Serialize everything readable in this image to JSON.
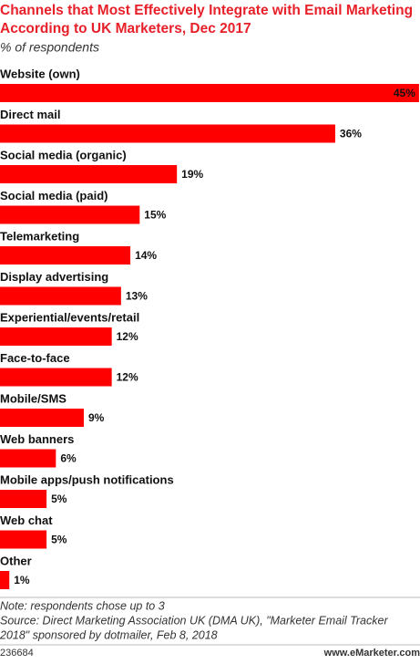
{
  "chart_data": {
    "type": "bar",
    "title": "Channels that Most Effectively Integrate with Email Marketing According to UK Marketers, Dec 2017",
    "subtitle": "% of respondents",
    "categories": [
      "Website (own)",
      "Direct mail",
      "Social media (organic)",
      "Social media (paid)",
      "Telemarketing",
      "Display advertising",
      "Experiential/events/retail",
      "Face-to-face",
      "Mobile/SMS",
      "Web banners",
      "Mobile apps/push notifications",
      "Web chat",
      "Other"
    ],
    "values": [
      45,
      36,
      19,
      15,
      14,
      13,
      12,
      12,
      9,
      6,
      5,
      5,
      1
    ],
    "value_labels": [
      "45%",
      "36%",
      "19%",
      "15%",
      "14%",
      "13%",
      "12%",
      "12%",
      "9%",
      "6%",
      "5%",
      "5%",
      "1%"
    ],
    "color": "#ff0000",
    "note": "Note: respondents chose up to 3",
    "source": [
      "Source: Direct Marketing Association UK (DMA UK), \"Marketer Email Tracker",
      "2018\" sponsored by dotmailer, Feb 8, 2018"
    ],
    "footer_left": "236684",
    "footer_right": "www.eMarketer.com"
  }
}
